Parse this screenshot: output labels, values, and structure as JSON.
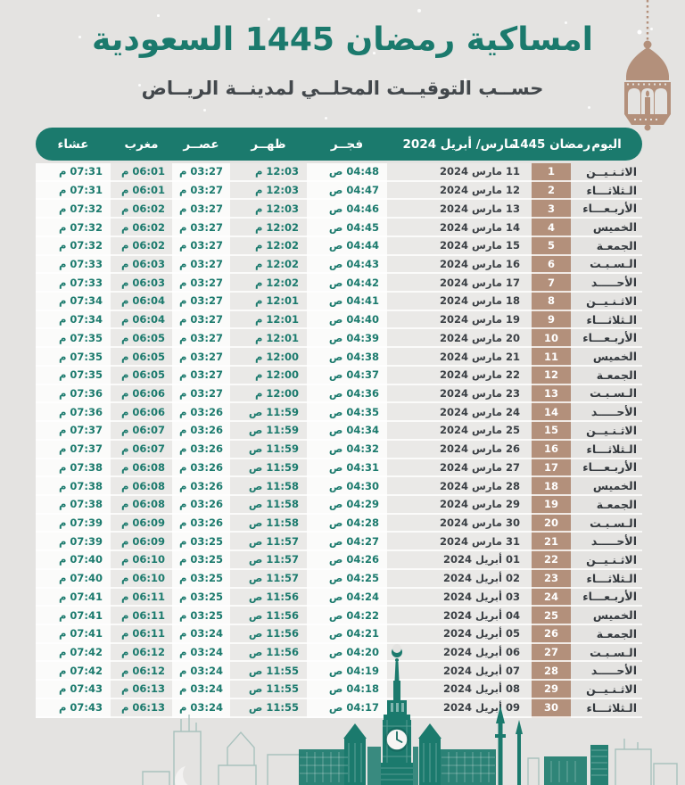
{
  "header": {
    "title": "امساكية رمضان 1445 السعودية",
    "subtitle": "حســب التوقيــت المحلــي لمدينــة الريــاض"
  },
  "table": {
    "columns": [
      {
        "key": "day",
        "label": "اليوم"
      },
      {
        "key": "ramadan",
        "label": "رمضان 1445"
      },
      {
        "key": "date",
        "label": "مارس/ أبريل 2024"
      },
      {
        "key": "fajr",
        "label": "فجــر"
      },
      {
        "key": "dhuhr",
        "label": "ظهــر"
      },
      {
        "key": "asr",
        "label": "عصــر"
      },
      {
        "key": "maghrib",
        "label": "مغرب"
      },
      {
        "key": "isha",
        "label": "عشاء"
      }
    ],
    "rows": [
      {
        "day": "الاثـنـيــن",
        "ramadan": "1",
        "date": "11 مارس 2024",
        "fajr": "04:48 ص",
        "dhuhr": "12:03 م",
        "asr": "03:27 م",
        "maghrib": "06:01 م",
        "isha": "07:31 م"
      },
      {
        "day": "الـثلاثـــاء",
        "ramadan": "2",
        "date": "12 مارس 2024",
        "fajr": "04:47 ص",
        "dhuhr": "12:03 م",
        "asr": "03:27 م",
        "maghrib": "06:01 م",
        "isha": "07:31 م"
      },
      {
        "day": "الأربـعـــاء",
        "ramadan": "3",
        "date": "13 مارس 2024",
        "fajr": "04:46 ص",
        "dhuhr": "12:03 م",
        "asr": "03:27 م",
        "maghrib": "06:02 م",
        "isha": "07:32 م"
      },
      {
        "day": "الخميس",
        "ramadan": "4",
        "date": "14 مارس 2024",
        "fajr": "04:45 ص",
        "dhuhr": "12:02 م",
        "asr": "03:27 م",
        "maghrib": "06:02 م",
        "isha": "07:32 م"
      },
      {
        "day": "الجمعـة",
        "ramadan": "5",
        "date": "15 مارس 2024",
        "fajr": "04:44 ص",
        "dhuhr": "12:02 م",
        "asr": "03:27 م",
        "maghrib": "06:02 م",
        "isha": "07:32 م"
      },
      {
        "day": "الـسـبـت",
        "ramadan": "6",
        "date": "16 مارس 2024",
        "fajr": "04:43 ص",
        "dhuhr": "12:02 م",
        "asr": "03:27 م",
        "maghrib": "06:03 م",
        "isha": "07:33 م"
      },
      {
        "day": "الأحـــــد",
        "ramadan": "7",
        "date": "17 مارس 2024",
        "fajr": "04:42 ص",
        "dhuhr": "12:02 م",
        "asr": "03:27 م",
        "maghrib": "06:03 م",
        "isha": "07:33 م"
      },
      {
        "day": "الاثـنـيــن",
        "ramadan": "8",
        "date": "18 مارس 2024",
        "fajr": "04:41 ص",
        "dhuhr": "12:01 م",
        "asr": "03:27 م",
        "maghrib": "06:04 م",
        "isha": "07:34 م"
      },
      {
        "day": "الـثلاثـــاء",
        "ramadan": "9",
        "date": "19 مارس 2024",
        "fajr": "04:40 ص",
        "dhuhr": "12:01 م",
        "asr": "03:27 م",
        "maghrib": "06:04 م",
        "isha": "07:34 م"
      },
      {
        "day": "الأربـعـــاء",
        "ramadan": "10",
        "date": "20 مارس 2024",
        "fajr": "04:39 ص",
        "dhuhr": "12:01 م",
        "asr": "03:27 م",
        "maghrib": "06:05 م",
        "isha": "07:35 م"
      },
      {
        "day": "الخميس",
        "ramadan": "11",
        "date": "21 مارس 2024",
        "fajr": "04:38 ص",
        "dhuhr": "12:00 م",
        "asr": "03:27 م",
        "maghrib": "06:05 م",
        "isha": "07:35 م"
      },
      {
        "day": "الجمعـة",
        "ramadan": "12",
        "date": "22 مارس 2024",
        "fajr": "04:37 ص",
        "dhuhr": "12:00 م",
        "asr": "03:27 م",
        "maghrib": "06:05 م",
        "isha": "07:35 م"
      },
      {
        "day": "الـسـبـت",
        "ramadan": "13",
        "date": "23 مارس 2024",
        "fajr": "04:36 ص",
        "dhuhr": "12:00 م",
        "asr": "03:27 م",
        "maghrib": "06:06 م",
        "isha": "07:36 م"
      },
      {
        "day": "الأحـــــد",
        "ramadan": "14",
        "date": "24 مارس 2024",
        "fajr": "04:35 ص",
        "dhuhr": "11:59 ص",
        "asr": "03:26 م",
        "maghrib": "06:06 م",
        "isha": "07:36 م"
      },
      {
        "day": "الاثـنـيــن",
        "ramadan": "15",
        "date": "25 مارس 2024",
        "fajr": "04:34 ص",
        "dhuhr": "11:59 ص",
        "asr": "03:26 م",
        "maghrib": "06:07 م",
        "isha": "07:37 م"
      },
      {
        "day": "الـثلاثـــاء",
        "ramadan": "16",
        "date": "26 مارس 2024",
        "fajr": "04:32 ص",
        "dhuhr": "11:59 ص",
        "asr": "03:26 م",
        "maghrib": "06:07 م",
        "isha": "07:37 م"
      },
      {
        "day": "الأربـعـــاء",
        "ramadan": "17",
        "date": "27 مارس 2024",
        "fajr": "04:31 ص",
        "dhuhr": "11:59 ص",
        "asr": "03:26 م",
        "maghrib": "06:08 م",
        "isha": "07:38 م"
      },
      {
        "day": "الخميس",
        "ramadan": "18",
        "date": "28 مارس 2024",
        "fajr": "04:30 ص",
        "dhuhr": "11:58 ص",
        "asr": "03:26 م",
        "maghrib": "06:08 م",
        "isha": "07:38 م"
      },
      {
        "day": "الجمعـة",
        "ramadan": "19",
        "date": "29 مارس 2024",
        "fajr": "04:29 ص",
        "dhuhr": "11:58 ص",
        "asr": "03:26 م",
        "maghrib": "06:08 م",
        "isha": "07:38 م"
      },
      {
        "day": "الـسـبـت",
        "ramadan": "20",
        "date": "30 مارس 2024",
        "fajr": "04:28 ص",
        "dhuhr": "11:58 ص",
        "asr": "03:26 م",
        "maghrib": "06:09 م",
        "isha": "07:39 م"
      },
      {
        "day": "الأحـــــد",
        "ramadan": "21",
        "date": "31 مارس 2024",
        "fajr": "04:27 ص",
        "dhuhr": "11:57 ص",
        "asr": "03:25 م",
        "maghrib": "06:09 م",
        "isha": "07:39 م"
      },
      {
        "day": "الاثـنـيــن",
        "ramadan": "22",
        "date": "01 أبريل 2024",
        "fajr": "04:26 ص",
        "dhuhr": "11:57 ص",
        "asr": "03:25 م",
        "maghrib": "06:10 م",
        "isha": "07:40 م"
      },
      {
        "day": "الـثلاثـــاء",
        "ramadan": "23",
        "date": "02 أبريل 2024",
        "fajr": "04:25 ص",
        "dhuhr": "11:57 ص",
        "asr": "03:25 م",
        "maghrib": "06:10 م",
        "isha": "07:40 م"
      },
      {
        "day": "الأربـعـــاء",
        "ramadan": "24",
        "date": "03 أبريل 2024",
        "fajr": "04:24 ص",
        "dhuhr": "11:56 ص",
        "asr": "03:25 م",
        "maghrib": "06:11 م",
        "isha": "07:41 م"
      },
      {
        "day": "الخميس",
        "ramadan": "25",
        "date": "04 أبريل 2024",
        "fajr": "04:22 ص",
        "dhuhr": "11:56 ص",
        "asr": "03:25 م",
        "maghrib": "06:11 م",
        "isha": "07:41 م"
      },
      {
        "day": "الجمعـة",
        "ramadan": "26",
        "date": "05 أبريل 2024",
        "fajr": "04:21 ص",
        "dhuhr": "11:56 ص",
        "asr": "03:24 م",
        "maghrib": "06:11 م",
        "isha": "07:41 م"
      },
      {
        "day": "الـسـبـت",
        "ramadan": "27",
        "date": "06 أبريل 2024",
        "fajr": "04:20 ص",
        "dhuhr": "11:56 ص",
        "asr": "03:24 م",
        "maghrib": "06:12 م",
        "isha": "07:42 م"
      },
      {
        "day": "الأحـــــد",
        "ramadan": "28",
        "date": "07 أبريل 2024",
        "fajr": "04:19 ص",
        "dhuhr": "11:55 ص",
        "asr": "03:24 م",
        "maghrib": "06:12 م",
        "isha": "07:42 م"
      },
      {
        "day": "الاثـنـيــن",
        "ramadan": "29",
        "date": "08 أبريل 2024",
        "fajr": "04:18 ص",
        "dhuhr": "11:55 ص",
        "asr": "03:24 م",
        "maghrib": "06:13 م",
        "isha": "07:43 م"
      },
      {
        "day": "الـثلاثـــاء",
        "ramadan": "30",
        "date": "09 أبريل 2024",
        "fajr": "04:17 ص",
        "dhuhr": "11:55 ص",
        "asr": "03:24 م",
        "maghrib": "06:13 م",
        "isha": "07:43 م"
      }
    ]
  },
  "colors": {
    "teal": "#1b7a6d",
    "tan": "#b3907b",
    "page_bg": "#e4e3e1",
    "cell_white": "#fbfbfa",
    "cell_gray": "#eae9e7",
    "text_dark": "#3a3f44"
  },
  "icons": {
    "lantern": "lantern-icon",
    "skyline": "city-skyline",
    "crescent": "crescent-icon",
    "clock_tower": "clock-tower"
  }
}
